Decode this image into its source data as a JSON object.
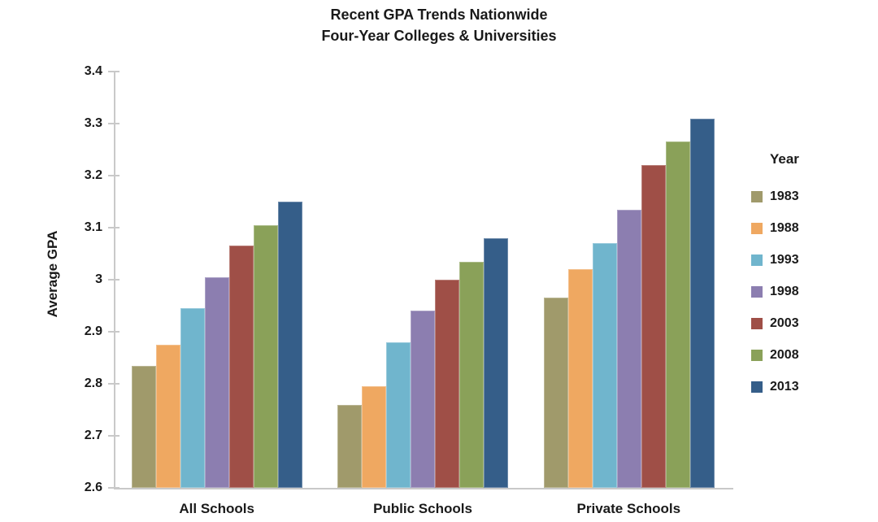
{
  "title": {
    "line1": "Recent GPA Trends Nationwide",
    "line2": "Four-Year Colleges & Universities"
  },
  "chart_data": {
    "type": "bar",
    "title": "Recent GPA Trends Nationwide - Four-Year Colleges & Universities",
    "categories": [
      "All Schools",
      "Public Schools",
      "Private Schools"
    ],
    "series": [
      {
        "name": "1983",
        "color": "#A09A6B",
        "values": [
          2.835,
          2.76,
          2.965
        ]
      },
      {
        "name": "1988",
        "color": "#EFA861",
        "values": [
          2.875,
          2.795,
          3.02
        ]
      },
      {
        "name": "1993",
        "color": "#70B5CD",
        "values": [
          2.945,
          2.88,
          3.07
        ]
      },
      {
        "name": "1998",
        "color": "#8C7EB0",
        "values": [
          3.005,
          2.94,
          3.135
        ]
      },
      {
        "name": "2003",
        "color": "#9F4F47",
        "values": [
          3.065,
          3.0,
          3.22
        ]
      },
      {
        "name": "2008",
        "color": "#8AA159",
        "values": [
          3.105,
          3.035,
          3.265
        ]
      },
      {
        "name": "2013",
        "color": "#355E89",
        "values": [
          3.15,
          3.08,
          3.31
        ]
      }
    ],
    "xlabel": "",
    "ylabel": "Average GPA",
    "ylim": [
      2.6,
      3.4
    ],
    "yticks": [
      2.6,
      2.7,
      2.8,
      2.9,
      3.0,
      3.1,
      3.2,
      3.3,
      3.4
    ],
    "ytick_labels": [
      "2.6",
      "2.7",
      "2.8",
      "2.9",
      "3",
      "3.1",
      "3.2",
      "3.3",
      "3.4"
    ],
    "grid": false,
    "legend": {
      "title": "Year",
      "position": "right"
    }
  },
  "colors": {
    "background": "#FFFFFF",
    "axis": "#C9C9C9",
    "text": "#1A1A1A"
  }
}
